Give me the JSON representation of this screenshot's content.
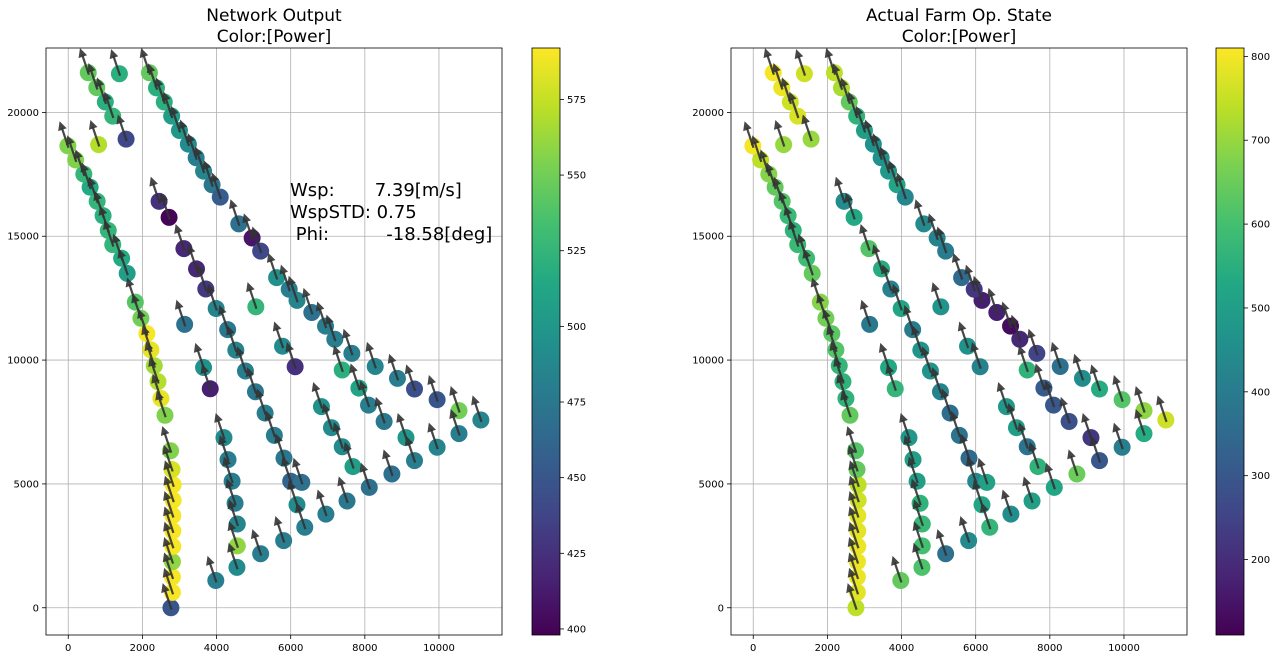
{
  "chart_data": [
    {
      "type": "scatter",
      "title": "Network Output\nColor:[Power]",
      "xlim": [
        -600,
        11700
      ],
      "ylim": [
        -1100,
        22600
      ],
      "x_ticks": [
        0,
        2000,
        4000,
        6000,
        8000,
        10000
      ],
      "y_ticks": [
        0,
        5000,
        10000,
        15000,
        20000
      ],
      "grid": true,
      "colorbar": {
        "min": 398,
        "max": 592,
        "ticks": [
          400,
          425,
          450,
          475,
          500,
          525,
          550,
          575
        ]
      },
      "annotation": [
        "Wsp:       7.39[m/s]",
        "WspSTD: 0.75",
        " Phi:          -18.58[deg]"
      ],
      "wind_direction_deg": -18.58,
      "points": [
        {
          "x": 2770,
          "y": 0,
          "c": 450
        },
        {
          "x": 2810,
          "y": 620,
          "c": 590
        },
        {
          "x": 2810,
          "y": 1240,
          "c": 590
        },
        {
          "x": 2810,
          "y": 1860,
          "c": 560
        },
        {
          "x": 2820,
          "y": 2480,
          "c": 590
        },
        {
          "x": 2820,
          "y": 3100,
          "c": 590
        },
        {
          "x": 2820,
          "y": 3720,
          "c": 590
        },
        {
          "x": 2830,
          "y": 4340,
          "c": 590
        },
        {
          "x": 2830,
          "y": 4960,
          "c": 590
        },
        {
          "x": 2800,
          "y": 5580,
          "c": 580
        },
        {
          "x": 2760,
          "y": 6340,
          "c": 555
        },
        {
          "x": 2610,
          "y": 7770,
          "c": 555
        },
        {
          "x": 2500,
          "y": 8450,
          "c": 585
        },
        {
          "x": 2420,
          "y": 9130,
          "c": 570
        },
        {
          "x": 2320,
          "y": 9770,
          "c": 565
        },
        {
          "x": 2230,
          "y": 10410,
          "c": 585
        },
        {
          "x": 2120,
          "y": 11070,
          "c": 590
        },
        {
          "x": 1960,
          "y": 11690,
          "c": 550
        },
        {
          "x": 1810,
          "y": 12340,
          "c": 540
        },
        {
          "x": 1590,
          "y": 13500,
          "c": 505
        },
        {
          "x": 1440,
          "y": 14110,
          "c": 515
        },
        {
          "x": 1200,
          "y": 14660,
          "c": 525
        },
        {
          "x": 1080,
          "y": 15230,
          "c": 525
        },
        {
          "x": 940,
          "y": 15830,
          "c": 520
        },
        {
          "x": 780,
          "y": 16410,
          "c": 525
        },
        {
          "x": 590,
          "y": 16980,
          "c": 515
        },
        {
          "x": 420,
          "y": 17510,
          "c": 525
        },
        {
          "x": 200,
          "y": 18080,
          "c": 555
        },
        {
          "x": -10,
          "y": 18650,
          "c": 555
        },
        {
          "x": 820,
          "y": 18700,
          "c": 570
        },
        {
          "x": 540,
          "y": 21600,
          "c": 545
        },
        {
          "x": 770,
          "y": 21000,
          "c": 545
        },
        {
          "x": 1000,
          "y": 20420,
          "c": 520
        },
        {
          "x": 1200,
          "y": 19850,
          "c": 525
        },
        {
          "x": 1380,
          "y": 21560,
          "c": 520
        },
        {
          "x": 1560,
          "y": 18920,
          "c": 440
        },
        {
          "x": 2190,
          "y": 21600,
          "c": 545
        },
        {
          "x": 2380,
          "y": 20990,
          "c": 520
        },
        {
          "x": 2590,
          "y": 20420,
          "c": 520
        },
        {
          "x": 2790,
          "y": 19850,
          "c": 505
        },
        {
          "x": 3000,
          "y": 19270,
          "c": 500
        },
        {
          "x": 3240,
          "y": 18720,
          "c": 490
        },
        {
          "x": 3450,
          "y": 18170,
          "c": 480
        },
        {
          "x": 3650,
          "y": 17630,
          "c": 485
        },
        {
          "x": 3880,
          "y": 17080,
          "c": 475
        },
        {
          "x": 4100,
          "y": 16580,
          "c": 455
        },
        {
          "x": 4600,
          "y": 15500,
          "c": 470
        },
        {
          "x": 4960,
          "y": 14930,
          "c": 410
        },
        {
          "x": 5190,
          "y": 14400,
          "c": 440
        },
        {
          "x": 2450,
          "y": 16410,
          "c": 425
        },
        {
          "x": 2720,
          "y": 15760,
          "c": 400
        },
        {
          "x": 3120,
          "y": 14500,
          "c": 420
        },
        {
          "x": 3460,
          "y": 13680,
          "c": 420
        },
        {
          "x": 3710,
          "y": 12870,
          "c": 430
        },
        {
          "x": 3990,
          "y": 12080,
          "c": 485
        },
        {
          "x": 4300,
          "y": 11230,
          "c": 475
        },
        {
          "x": 4520,
          "y": 10400,
          "c": 485
        },
        {
          "x": 4780,
          "y": 9560,
          "c": 480
        },
        {
          "x": 5050,
          "y": 8720,
          "c": 475
        },
        {
          "x": 5310,
          "y": 7860,
          "c": 480
        },
        {
          "x": 5560,
          "y": 6960,
          "c": 480
        },
        {
          "x": 5820,
          "y": 6040,
          "c": 475
        },
        {
          "x": 6000,
          "y": 5110,
          "c": 460
        },
        {
          "x": 6170,
          "y": 4160,
          "c": 490
        },
        {
          "x": 6380,
          "y": 3250,
          "c": 480
        },
        {
          "x": 3140,
          "y": 11440,
          "c": 470
        },
        {
          "x": 3650,
          "y": 9700,
          "c": 495
        },
        {
          "x": 3830,
          "y": 8840,
          "c": 415
        },
        {
          "x": 4200,
          "y": 6870,
          "c": 490
        },
        {
          "x": 4310,
          "y": 5980,
          "c": 480
        },
        {
          "x": 4420,
          "y": 5110,
          "c": 480
        },
        {
          "x": 4500,
          "y": 4220,
          "c": 480
        },
        {
          "x": 4560,
          "y": 3380,
          "c": 485
        },
        {
          "x": 4560,
          "y": 2500,
          "c": 560
        },
        {
          "x": 4550,
          "y": 1630,
          "c": 490
        },
        {
          "x": 3980,
          "y": 1100,
          "c": 480
        },
        {
          "x": 5190,
          "y": 2180,
          "c": 480
        },
        {
          "x": 5810,
          "y": 2710,
          "c": 480
        },
        {
          "x": 6950,
          "y": 3780,
          "c": 480
        },
        {
          "x": 7520,
          "y": 4310,
          "c": 475
        },
        {
          "x": 8120,
          "y": 4860,
          "c": 470
        },
        {
          "x": 8730,
          "y": 5400,
          "c": 470
        },
        {
          "x": 9340,
          "y": 5940,
          "c": 480
        },
        {
          "x": 9950,
          "y": 6480,
          "c": 485
        },
        {
          "x": 10540,
          "y": 7030,
          "c": 480
        },
        {
          "x": 11130,
          "y": 7580,
          "c": 485
        },
        {
          "x": 10540,
          "y": 7960,
          "c": 550
        },
        {
          "x": 9950,
          "y": 8400,
          "c": 450
        },
        {
          "x": 9340,
          "y": 8830,
          "c": 445
        },
        {
          "x": 8880,
          "y": 9260,
          "c": 480
        },
        {
          "x": 8280,
          "y": 9740,
          "c": 485
        },
        {
          "x": 7650,
          "y": 10270,
          "c": 480
        },
        {
          "x": 7190,
          "y": 10840,
          "c": 480
        },
        {
          "x": 6940,
          "y": 11370,
          "c": 480
        },
        {
          "x": 6570,
          "y": 11920,
          "c": 470
        },
        {
          "x": 6170,
          "y": 12410,
          "c": 485
        },
        {
          "x": 5960,
          "y": 12860,
          "c": 480
        },
        {
          "x": 5620,
          "y": 13330,
          "c": 495
        },
        {
          "x": 5060,
          "y": 12150,
          "c": 525
        },
        {
          "x": 5780,
          "y": 10560,
          "c": 490
        },
        {
          "x": 6120,
          "y": 9730,
          "c": 425
        },
        {
          "x": 7390,
          "y": 9600,
          "c": 520
        },
        {
          "x": 7840,
          "y": 8870,
          "c": 510
        },
        {
          "x": 8100,
          "y": 8180,
          "c": 480
        },
        {
          "x": 8520,
          "y": 7520,
          "c": 475
        },
        {
          "x": 9110,
          "y": 6870,
          "c": 500
        },
        {
          "x": 6830,
          "y": 8120,
          "c": 495
        },
        {
          "x": 7100,
          "y": 7270,
          "c": 490
        },
        {
          "x": 7390,
          "y": 6500,
          "c": 490
        },
        {
          "x": 7680,
          "y": 5700,
          "c": 505
        },
        {
          "x": 6300,
          "y": 5060,
          "c": 470
        }
      ]
    },
    {
      "type": "scatter",
      "title": "Actual Farm Op. State\nColor:[Power]",
      "xlim": [
        -600,
        11700
      ],
      "ylim": [
        -1100,
        22600
      ],
      "x_ticks": [
        0,
        2000,
        4000,
        6000,
        8000,
        10000
      ],
      "y_ticks": [
        0,
        5000,
        10000,
        15000,
        20000
      ],
      "grid": true,
      "colorbar": {
        "min": 110,
        "max": 810,
        "ticks": [
          200,
          300,
          400,
          500,
          600,
          700,
          800
        ]
      },
      "wind_direction_deg": -18.58,
      "points": [
        {
          "x": 2770,
          "y": 0,
          "c": 740
        },
        {
          "x": 2810,
          "y": 620,
          "c": 780
        },
        {
          "x": 2810,
          "y": 1240,
          "c": 790
        },
        {
          "x": 2810,
          "y": 1860,
          "c": 790
        },
        {
          "x": 2820,
          "y": 2480,
          "c": 790
        },
        {
          "x": 2820,
          "y": 3100,
          "c": 780
        },
        {
          "x": 2820,
          "y": 3720,
          "c": 780
        },
        {
          "x": 2830,
          "y": 4340,
          "c": 760
        },
        {
          "x": 2830,
          "y": 4960,
          "c": 740
        },
        {
          "x": 2800,
          "y": 5580,
          "c": 640
        },
        {
          "x": 2760,
          "y": 6340,
          "c": 620
        },
        {
          "x": 2610,
          "y": 7770,
          "c": 640
        },
        {
          "x": 2500,
          "y": 8450,
          "c": 560
        },
        {
          "x": 2420,
          "y": 9130,
          "c": 560
        },
        {
          "x": 2320,
          "y": 9770,
          "c": 570
        },
        {
          "x": 2230,
          "y": 10410,
          "c": 620
        },
        {
          "x": 2120,
          "y": 11070,
          "c": 630
        },
        {
          "x": 1960,
          "y": 11690,
          "c": 660
        },
        {
          "x": 1810,
          "y": 12340,
          "c": 680
        },
        {
          "x": 1590,
          "y": 13500,
          "c": 640
        },
        {
          "x": 1440,
          "y": 14110,
          "c": 590
        },
        {
          "x": 1200,
          "y": 14660,
          "c": 580
        },
        {
          "x": 1080,
          "y": 15230,
          "c": 560
        },
        {
          "x": 940,
          "y": 15830,
          "c": 580
        },
        {
          "x": 780,
          "y": 16410,
          "c": 620
        },
        {
          "x": 590,
          "y": 16980,
          "c": 640
        },
        {
          "x": 420,
          "y": 17510,
          "c": 680
        },
        {
          "x": 200,
          "y": 18080,
          "c": 740
        },
        {
          "x": -10,
          "y": 18650,
          "c": 800
        },
        {
          "x": 820,
          "y": 18700,
          "c": 700
        },
        {
          "x": 540,
          "y": 21600,
          "c": 800
        },
        {
          "x": 770,
          "y": 21000,
          "c": 790
        },
        {
          "x": 1000,
          "y": 20420,
          "c": 760
        },
        {
          "x": 1200,
          "y": 19850,
          "c": 770
        },
        {
          "x": 1380,
          "y": 21560,
          "c": 760
        },
        {
          "x": 1560,
          "y": 18920,
          "c": 700
        },
        {
          "x": 2190,
          "y": 21600,
          "c": 740
        },
        {
          "x": 2380,
          "y": 20990,
          "c": 720
        },
        {
          "x": 2590,
          "y": 20420,
          "c": 640
        },
        {
          "x": 2790,
          "y": 19850,
          "c": 560
        },
        {
          "x": 3000,
          "y": 19270,
          "c": 500
        },
        {
          "x": 3240,
          "y": 18720,
          "c": 460
        },
        {
          "x": 3450,
          "y": 18170,
          "c": 460
        },
        {
          "x": 3650,
          "y": 17630,
          "c": 480
        },
        {
          "x": 3880,
          "y": 17080,
          "c": 520
        },
        {
          "x": 4100,
          "y": 16580,
          "c": 430
        },
        {
          "x": 4600,
          "y": 15500,
          "c": 440
        },
        {
          "x": 4960,
          "y": 14930,
          "c": 420
        },
        {
          "x": 5190,
          "y": 14400,
          "c": 400
        },
        {
          "x": 2450,
          "y": 16410,
          "c": 450
        },
        {
          "x": 2720,
          "y": 15760,
          "c": 530
        },
        {
          "x": 3120,
          "y": 14500,
          "c": 620
        },
        {
          "x": 3460,
          "y": 13680,
          "c": 540
        },
        {
          "x": 3710,
          "y": 12870,
          "c": 420
        },
        {
          "x": 3990,
          "y": 12080,
          "c": 520
        },
        {
          "x": 4300,
          "y": 11230,
          "c": 400
        },
        {
          "x": 4520,
          "y": 10400,
          "c": 470
        },
        {
          "x": 4780,
          "y": 9560,
          "c": 470
        },
        {
          "x": 5050,
          "y": 8720,
          "c": 420
        },
        {
          "x": 5310,
          "y": 7860,
          "c": 360
        },
        {
          "x": 5560,
          "y": 6960,
          "c": 380
        },
        {
          "x": 5820,
          "y": 6040,
          "c": 350
        },
        {
          "x": 6000,
          "y": 5110,
          "c": 430
        },
        {
          "x": 6170,
          "y": 4160,
          "c": 520
        },
        {
          "x": 6380,
          "y": 3250,
          "c": 570
        },
        {
          "x": 3140,
          "y": 11440,
          "c": 390
        },
        {
          "x": 3650,
          "y": 9700,
          "c": 530
        },
        {
          "x": 3830,
          "y": 8840,
          "c": 570
        },
        {
          "x": 4200,
          "y": 6870,
          "c": 480
        },
        {
          "x": 4310,
          "y": 5980,
          "c": 500
        },
        {
          "x": 4420,
          "y": 5110,
          "c": 500
        },
        {
          "x": 4500,
          "y": 4220,
          "c": 560
        },
        {
          "x": 4560,
          "y": 3380,
          "c": 580
        },
        {
          "x": 4560,
          "y": 2500,
          "c": 600
        },
        {
          "x": 4550,
          "y": 1630,
          "c": 610
        },
        {
          "x": 3980,
          "y": 1100,
          "c": 640
        },
        {
          "x": 5190,
          "y": 2180,
          "c": 370
        },
        {
          "x": 5810,
          "y": 2710,
          "c": 440
        },
        {
          "x": 6950,
          "y": 3780,
          "c": 450
        },
        {
          "x": 7520,
          "y": 4310,
          "c": 500
        },
        {
          "x": 8120,
          "y": 4860,
          "c": 520
        },
        {
          "x": 8730,
          "y": 5400,
          "c": 650
        },
        {
          "x": 9340,
          "y": 5940,
          "c": 300
        },
        {
          "x": 9950,
          "y": 6480,
          "c": 410
        },
        {
          "x": 10540,
          "y": 7030,
          "c": 540
        },
        {
          "x": 11130,
          "y": 7580,
          "c": 760
        },
        {
          "x": 10540,
          "y": 7960,
          "c": 690
        },
        {
          "x": 9950,
          "y": 8400,
          "c": 620
        },
        {
          "x": 9340,
          "y": 8830,
          "c": 540
        },
        {
          "x": 8880,
          "y": 9260,
          "c": 450
        },
        {
          "x": 8280,
          "y": 9740,
          "c": 370
        },
        {
          "x": 7650,
          "y": 10270,
          "c": 250
        },
        {
          "x": 7190,
          "y": 10840,
          "c": 190
        },
        {
          "x": 6940,
          "y": 11370,
          "c": 130
        },
        {
          "x": 6570,
          "y": 11920,
          "c": 170
        },
        {
          "x": 6170,
          "y": 12410,
          "c": 170
        },
        {
          "x": 5960,
          "y": 12860,
          "c": 220
        },
        {
          "x": 5620,
          "y": 13330,
          "c": 350
        },
        {
          "x": 5060,
          "y": 12150,
          "c": 470
        },
        {
          "x": 5780,
          "y": 10560,
          "c": 460
        },
        {
          "x": 6120,
          "y": 9730,
          "c": 420
        },
        {
          "x": 7390,
          "y": 9600,
          "c": 560
        },
        {
          "x": 7840,
          "y": 8870,
          "c": 310
        },
        {
          "x": 8100,
          "y": 8180,
          "c": 300
        },
        {
          "x": 8520,
          "y": 7520,
          "c": 280
        },
        {
          "x": 9110,
          "y": 6870,
          "c": 220
        },
        {
          "x": 6830,
          "y": 8120,
          "c": 480
        },
        {
          "x": 7100,
          "y": 7270,
          "c": 500
        },
        {
          "x": 7390,
          "y": 6500,
          "c": 380
        },
        {
          "x": 7680,
          "y": 5700,
          "c": 560
        },
        {
          "x": 6300,
          "y": 5060,
          "c": 510
        }
      ]
    }
  ]
}
